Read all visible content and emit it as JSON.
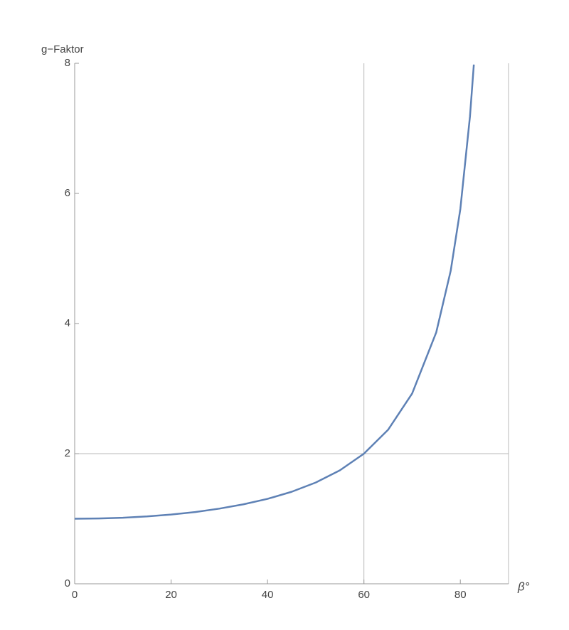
{
  "chart_data": {
    "type": "line",
    "x_label": "β°",
    "y_label": "g−Faktor",
    "x": [
      0,
      5,
      10,
      15,
      20,
      25,
      30,
      35,
      40,
      45,
      50,
      55,
      60,
      65,
      70,
      75,
      78,
      80,
      82,
      82.8
    ],
    "values": [
      1,
      1.004,
      1.015,
      1.035,
      1.064,
      1.103,
      1.155,
      1.221,
      1.305,
      1.414,
      1.556,
      1.743,
      2,
      2.366,
      2.924,
      3.864,
      4.81,
      5.759,
      7.185,
      7.98
    ],
    "color": "#5e81b5",
    "xlim": [
      0,
      90
    ],
    "xticks": [
      0,
      20,
      40,
      60,
      80
    ],
    "ylim": [
      0,
      8
    ],
    "yticks": [
      0,
      2,
      4,
      6,
      8
    ],
    "vlines": [
      60,
      90
    ],
    "hlines": [
      2
    ]
  }
}
